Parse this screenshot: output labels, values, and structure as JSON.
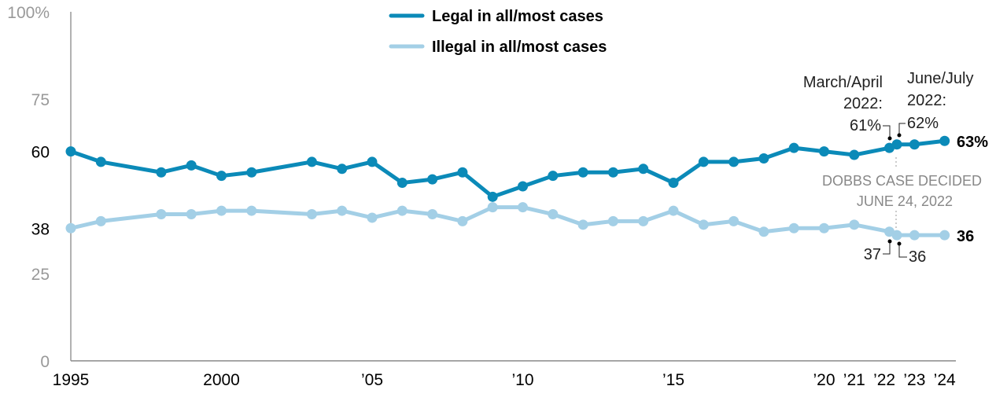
{
  "chart_data": {
    "type": "line",
    "title": "",
    "xlabel": "",
    "ylabel": "",
    "ylim": [
      0,
      100
    ],
    "y_ticks": [
      {
        "value": 0,
        "label": "0",
        "emphasis": false
      },
      {
        "value": 25,
        "label": "25",
        "emphasis": false
      },
      {
        "value": 38,
        "label": "38",
        "emphasis": true
      },
      {
        "value": 60,
        "label": "60",
        "emphasis": true
      },
      {
        "value": 75,
        "label": "75",
        "emphasis": false
      },
      {
        "value": 100,
        "label": "100%",
        "emphasis": false
      }
    ],
    "x_ticks": [
      {
        "value": "1995",
        "label": "1995"
      },
      {
        "value": "2000",
        "label": "2000"
      },
      {
        "value": "2005",
        "label": "’05"
      },
      {
        "value": "2010",
        "label": "’10"
      },
      {
        "value": "2015",
        "label": "’15"
      },
      {
        "value": "2020",
        "label": "’20"
      },
      {
        "value": "2021",
        "label": "’21"
      },
      {
        "value": "2022",
        "label": "’22"
      },
      {
        "value": "2023",
        "label": "’23"
      },
      {
        "value": "2024",
        "label": "’24"
      }
    ],
    "grid": false,
    "legend_position": "top-center",
    "x": [
      "1995",
      "1996",
      "1998",
      "1999",
      "2000",
      "2001",
      "2003",
      "2004",
      "2005",
      "2006",
      "2007",
      "2008",
      "2009",
      "2010",
      "2011",
      "2012",
      "2013",
      "2014",
      "2015",
      "2016",
      "2017",
      "2018",
      "2019",
      "2020",
      "2021",
      "2022-03",
      "2022-06",
      "2023",
      "2024"
    ],
    "series": [
      {
        "name": "Legal in all/most cases",
        "color": "#0b8ab8",
        "values": [
          60,
          57,
          54,
          56,
          53,
          54,
          57,
          55,
          57,
          51,
          52,
          54,
          47,
          50,
          53,
          54,
          54,
          55,
          51,
          57,
          57,
          58,
          61,
          60,
          59,
          61,
          62,
          62,
          63
        ],
        "end_label": "63%"
      },
      {
        "name": "Illegal in all/most cases",
        "color": "#a3cfe6",
        "values": [
          38,
          40,
          42,
          42,
          43,
          43,
          42,
          43,
          41,
          43,
          42,
          40,
          44,
          44,
          42,
          39,
          40,
          40,
          43,
          39,
          40,
          37,
          38,
          38,
          39,
          37,
          36,
          36,
          36
        ],
        "end_label": "36"
      }
    ],
    "annotations": {
      "march_april": {
        "line1": "March/April",
        "line2": "2022:",
        "value": "61%"
      },
      "june_july": {
        "line1": "June/July",
        "line2": "2022:",
        "value": "62%"
      },
      "dobbs": {
        "line1": "DOBBS CASE DECIDED",
        "line2": "JUNE 24, 2022"
      },
      "illegal_march": "37",
      "illegal_june": "36"
    }
  }
}
